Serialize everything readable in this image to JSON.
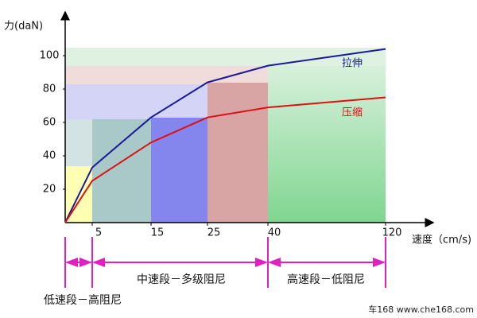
{
  "chart_data": {
    "type": "line",
    "y_label": "力(daN)",
    "x_label": "速度（cm/s)",
    "x": [
      0,
      5,
      15,
      25,
      40,
      120
    ],
    "series": [
      {
        "name": "拉伸",
        "color": "#1a1a9a",
        "values": [
          0,
          33,
          63,
          84,
          94,
          104
        ]
      },
      {
        "name": "压缩",
        "color": "#dd1111",
        "values": [
          0,
          25,
          48,
          63,
          69,
          75
        ]
      }
    ],
    "xlim": [
      0,
      120
    ],
    "xticks": [
      5,
      15,
      25,
      40,
      120
    ],
    "ylim": [
      0,
      100
    ],
    "yticks": [
      20,
      40,
      60,
      80,
      100
    ],
    "annotations": [
      "低速段－高阻尼",
      "中速段－多级阻尼",
      "高速段－低阻尼"
    ],
    "watermark": "车168 www.che168.com"
  }
}
